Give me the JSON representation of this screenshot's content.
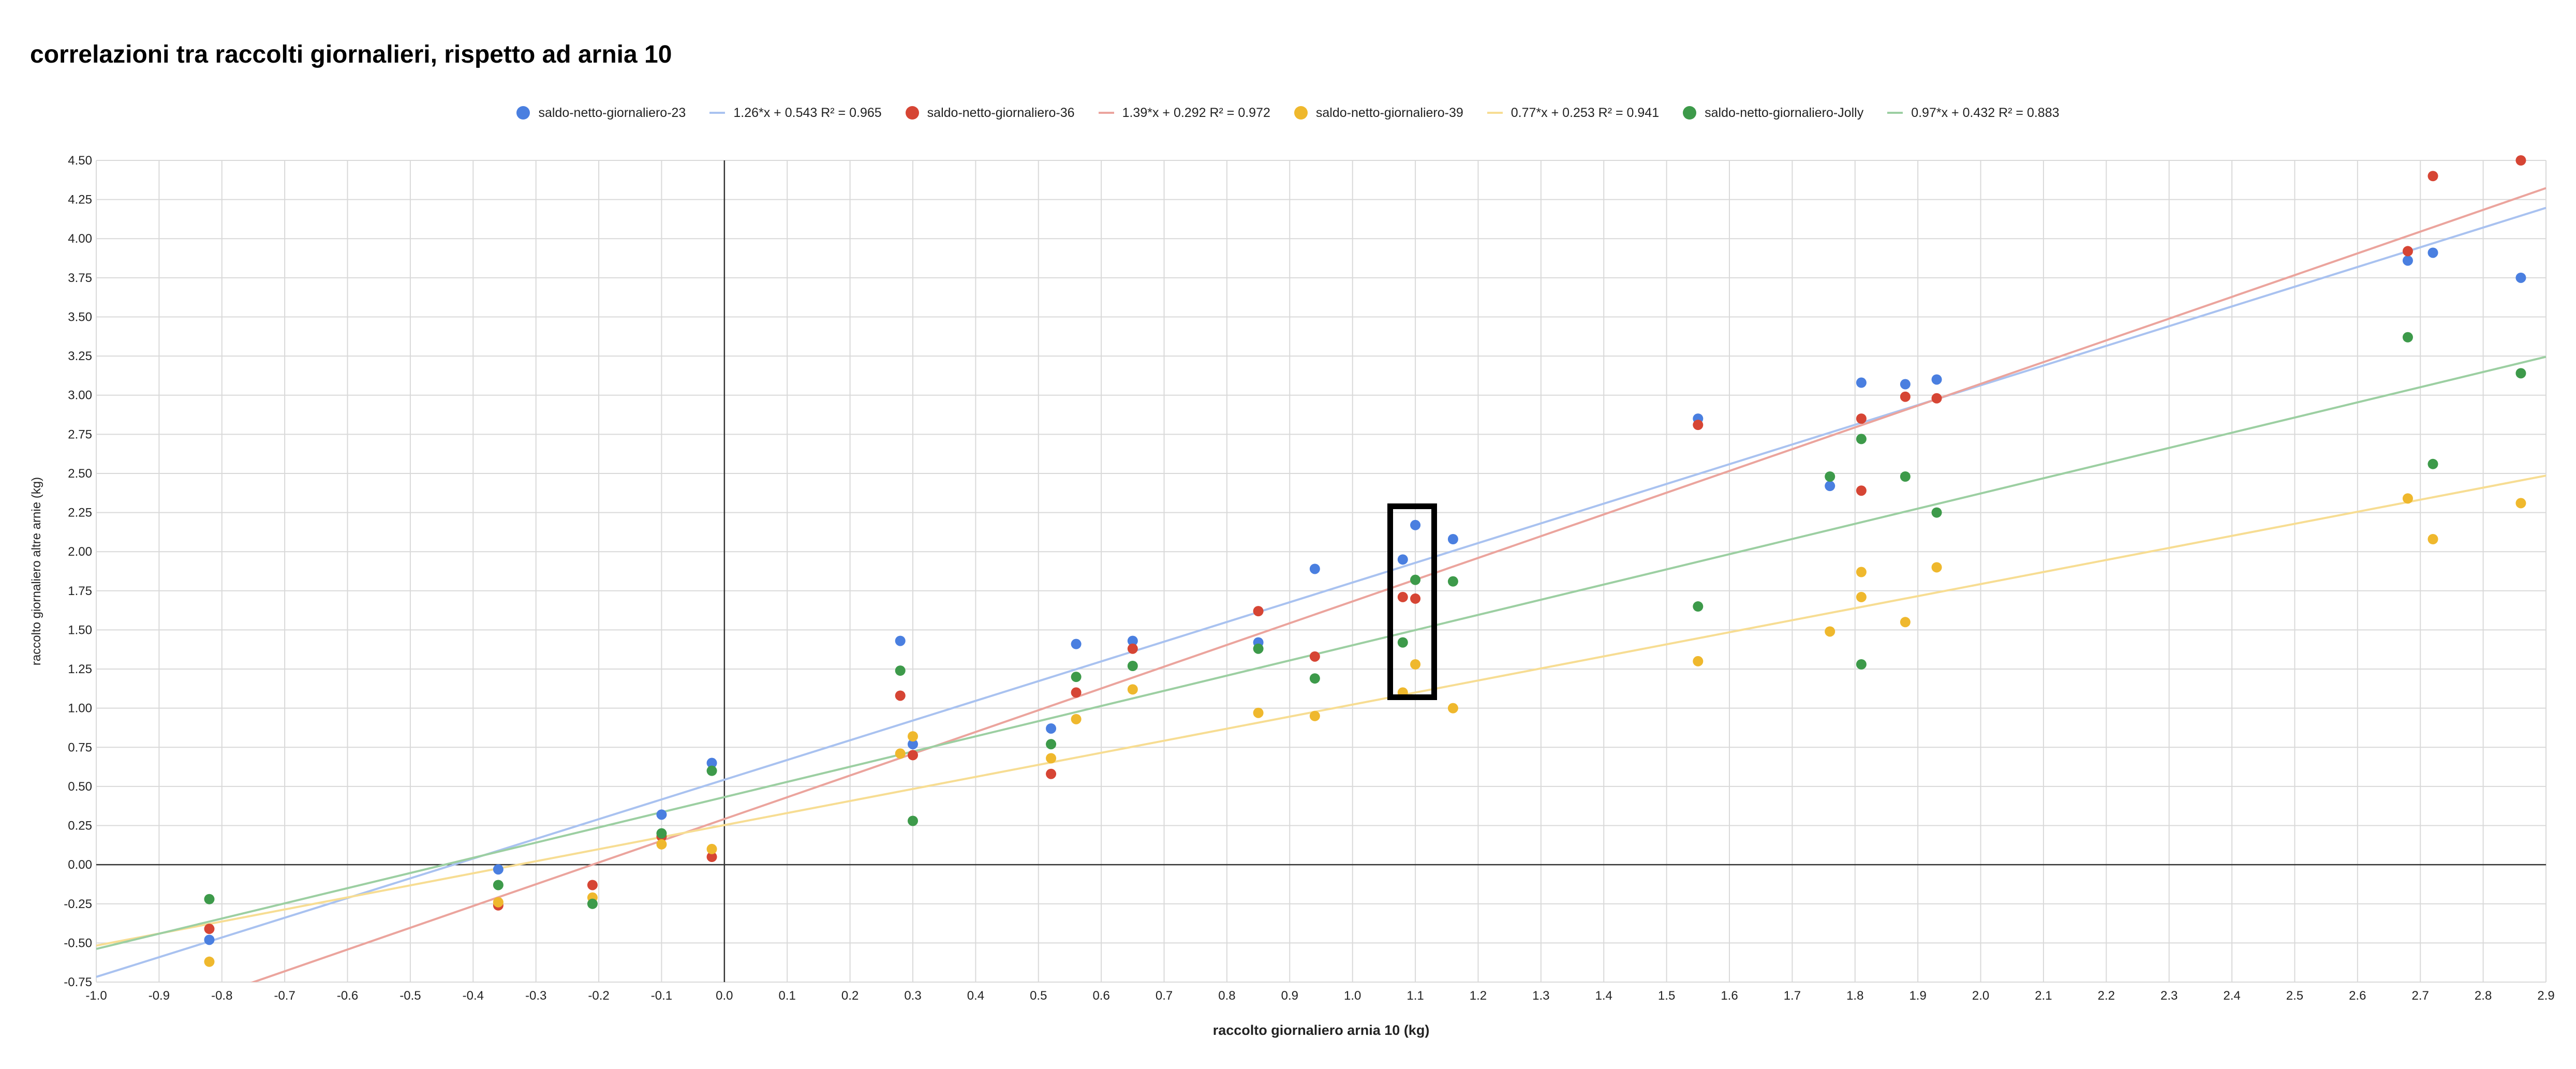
{
  "chart_data": {
    "type": "scatter",
    "title": "correlazioni tra raccolti giornalieri, rispetto ad arnia 10",
    "xlabel": "raccolto giornaliero arnia 10 (kg)",
    "ylabel": "raccolto giornaliero altre arnie (kg)",
    "xlim": [
      -1.0,
      2.9
    ],
    "ylim": [
      -0.75,
      4.5
    ],
    "x_ticks": [
      "-1.0",
      "-0.9",
      "-0.8",
      "-0.7",
      "-0.6",
      "-0.5",
      "-0.4",
      "-0.3",
      "-0.2",
      "-0.1",
      "0.0",
      "0.1",
      "0.2",
      "0.3",
      "0.4",
      "0.5",
      "0.6",
      "0.7",
      "0.8",
      "0.9",
      "1.0",
      "1.1",
      "1.2",
      "1.3",
      "1.4",
      "1.5",
      "1.6",
      "1.7",
      "1.8",
      "1.9",
      "2.0",
      "2.1",
      "2.2",
      "2.3",
      "2.4",
      "2.5",
      "2.6",
      "2.7",
      "2.8",
      "2.9"
    ],
    "y_ticks": [
      "-0.75",
      "-0.50",
      "-0.25",
      "0.00",
      "0.25",
      "0.50",
      "0.75",
      "1.00",
      "1.25",
      "1.50",
      "1.75",
      "2.00",
      "2.25",
      "2.50",
      "2.75",
      "3.00",
      "3.25",
      "3.50",
      "3.75",
      "4.00",
      "4.25",
      "4.50"
    ],
    "grid": true,
    "legend_position": "top",
    "annotation": "black-rectangle-around-x-1.1",
    "series": [
      {
        "name": "saldo-netto-giornaliero-23",
        "color": "#4a7fe0",
        "points": [
          [
            -0.82,
            -0.48
          ],
          [
            -0.36,
            -0.03
          ],
          [
            -0.1,
            0.32
          ],
          [
            -0.02,
            0.65
          ],
          [
            0.28,
            1.43
          ],
          [
            0.3,
            0.77
          ],
          [
            0.52,
            0.87
          ],
          [
            0.56,
            1.41
          ],
          [
            0.65,
            1.43
          ],
          [
            0.85,
            1.42
          ],
          [
            0.94,
            1.89
          ],
          [
            1.08,
            1.95
          ],
          [
            1.1,
            2.17
          ],
          [
            1.16,
            2.08
          ],
          [
            1.55,
            2.85
          ],
          [
            1.76,
            2.42
          ],
          [
            1.81,
            3.08
          ],
          [
            1.88,
            3.07
          ],
          [
            1.93,
            3.1
          ],
          [
            2.68,
            3.86
          ],
          [
            2.72,
            3.91
          ],
          [
            2.86,
            3.75
          ]
        ]
      },
      {
        "name": "1.26*x + 0.543 R² = 0.965",
        "color": "#a9c2f0",
        "trend": {
          "slope": 1.26,
          "intercept": 0.543
        }
      },
      {
        "name": "saldo-netto-giornaliero-36",
        "color": "#d64534",
        "points": [
          [
            -0.82,
            -0.41
          ],
          [
            -0.36,
            -0.26
          ],
          [
            -0.21,
            -0.13
          ],
          [
            -0.1,
            0.18
          ],
          [
            -0.02,
            0.05
          ],
          [
            0.28,
            1.08
          ],
          [
            0.3,
            0.7
          ],
          [
            0.52,
            0.58
          ],
          [
            0.56,
            1.1
          ],
          [
            0.65,
            1.38
          ],
          [
            0.85,
            1.62
          ],
          [
            0.94,
            1.33
          ],
          [
            1.08,
            1.71
          ],
          [
            1.1,
            1.7
          ],
          [
            1.55,
            2.81
          ],
          [
            1.81,
            2.85
          ],
          [
            1.81,
            2.39
          ],
          [
            1.88,
            2.99
          ],
          [
            1.93,
            2.98
          ],
          [
            2.68,
            3.92
          ],
          [
            2.72,
            4.4
          ],
          [
            2.86,
            4.5
          ]
        ]
      },
      {
        "name": "1.39*x + 0.292 R² = 0.972",
        "color": "#eba49d",
        "trend": {
          "slope": 1.39,
          "intercept": 0.292
        }
      },
      {
        "name": "saldo-netto-giornaliero-39",
        "color": "#efb82d",
        "points": [
          [
            -0.82,
            -0.62
          ],
          [
            -0.36,
            -0.24
          ],
          [
            -0.21,
            -0.21
          ],
          [
            -0.1,
            0.13
          ],
          [
            -0.02,
            0.1
          ],
          [
            0.28,
            0.71
          ],
          [
            0.3,
            0.82
          ],
          [
            0.52,
            0.68
          ],
          [
            0.56,
            0.93
          ],
          [
            0.65,
            1.12
          ],
          [
            0.85,
            0.97
          ],
          [
            0.94,
            0.95
          ],
          [
            1.08,
            1.1
          ],
          [
            1.1,
            1.28
          ],
          [
            1.16,
            1.0
          ],
          [
            1.55,
            1.3
          ],
          [
            1.76,
            1.49
          ],
          [
            1.81,
            1.87
          ],
          [
            1.81,
            1.71
          ],
          [
            1.88,
            1.55
          ],
          [
            1.93,
            1.9
          ],
          [
            2.68,
            2.34
          ],
          [
            2.72,
            2.08
          ],
          [
            2.86,
            2.31
          ]
        ]
      },
      {
        "name": "0.77*x + 0.253 R² = 0.941",
        "color": "#f7dd93",
        "trend": {
          "slope": 0.77,
          "intercept": 0.253
        }
      },
      {
        "name": "saldo-netto-giornaliero-Jolly",
        "color": "#3d9a4a",
        "points": [
          [
            -0.82,
            -0.22
          ],
          [
            -0.36,
            -0.13
          ],
          [
            -0.21,
            -0.25
          ],
          [
            -0.1,
            0.2
          ],
          [
            -0.02,
            0.6
          ],
          [
            0.28,
            1.24
          ],
          [
            0.3,
            0.28
          ],
          [
            0.52,
            0.77
          ],
          [
            0.56,
            1.2
          ],
          [
            0.65,
            1.27
          ],
          [
            0.85,
            1.38
          ],
          [
            0.94,
            1.19
          ],
          [
            1.08,
            1.42
          ],
          [
            1.1,
            1.82
          ],
          [
            1.16,
            1.81
          ],
          [
            1.55,
            1.65
          ],
          [
            1.76,
            2.48
          ],
          [
            1.81,
            2.72
          ],
          [
            1.81,
            1.28
          ],
          [
            1.88,
            2.48
          ],
          [
            1.93,
            2.25
          ],
          [
            2.68,
            3.37
          ],
          [
            2.72,
            2.56
          ],
          [
            2.86,
            3.14
          ]
        ]
      },
      {
        "name": "0.97*x + 0.432 R² = 0.883",
        "color": "#9ccfa2",
        "trend": {
          "slope": 0.97,
          "intercept": 0.432
        }
      }
    ]
  }
}
